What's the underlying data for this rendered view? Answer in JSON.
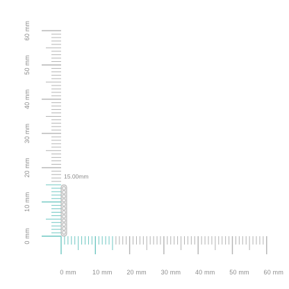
{
  "colors": {
    "ruler_gray": "#b3b3b3",
    "ruler_teal": "#6fc7c2",
    "label_gray": "#8c8c8c",
    "product_silver": "#d9d9d9",
    "product_outline": "#a6a6a6"
  },
  "ruler": {
    "unit_value_mm": 1,
    "total_mm": 60,
    "highlight_mm": 15,
    "x_labels": [
      "0 mm",
      "10 mm",
      "20 mm",
      "30 mm",
      "40 mm",
      "50 mm",
      "60 mm"
    ],
    "y_labels": [
      "0 mm",
      "10 mm",
      "20 mm",
      "30 mm",
      "40 mm",
      "50 mm",
      "60 mm"
    ]
  },
  "product": {
    "name_icon": "earring-bar-icon",
    "dimension_label": "15.00mm"
  }
}
